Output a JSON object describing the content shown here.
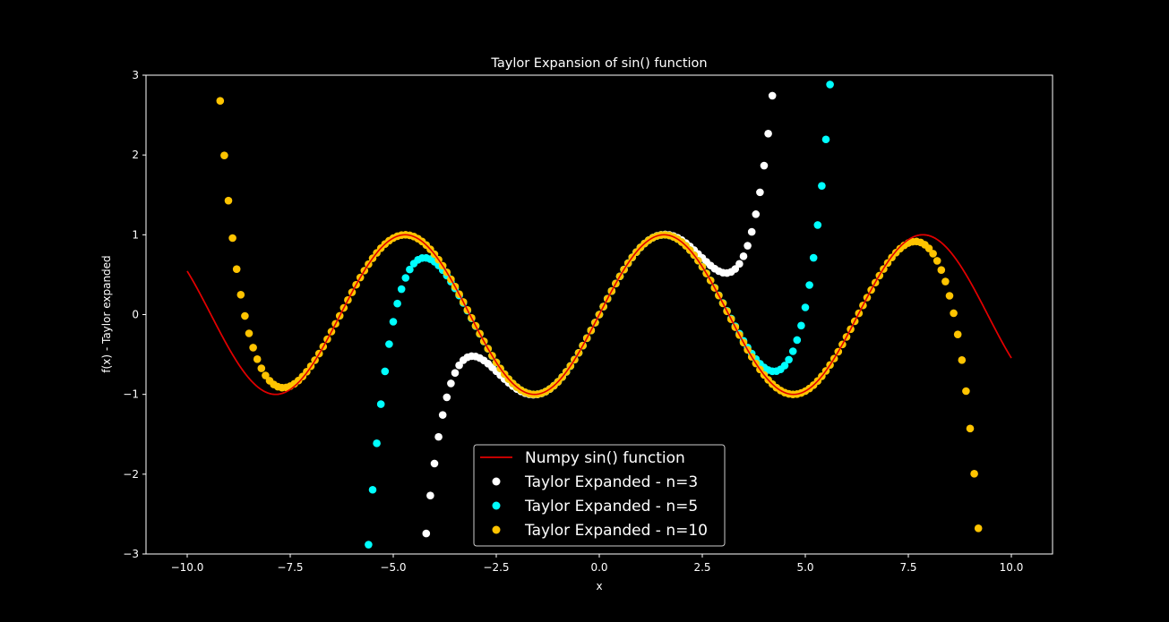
{
  "chart_data": {
    "type": "scatter",
    "title": "Taylor Expansion of sin() function",
    "xlabel": "x",
    "ylabel": "f(x) - Taylor expanded",
    "xlim": [
      -11,
      11
    ],
    "ylim": [
      -3,
      3
    ],
    "x_ticks": [
      -10,
      -7.5,
      -5,
      -2.5,
      0,
      2.5,
      5,
      7.5,
      10
    ],
    "x_tick_labels": [
      "−10.0",
      "−7.5",
      "−5.0",
      "−2.5",
      "0.0",
      "2.5",
      "5.0",
      "7.5",
      "10.0"
    ],
    "y_ticks": [
      -3,
      -2,
      -1,
      0,
      1,
      2,
      3
    ],
    "y_tick_labels": [
      "−3",
      "−2",
      "−1",
      "0",
      "1",
      "2",
      "3"
    ],
    "grid": false,
    "legend_position": "bottom-center",
    "background": "#000000",
    "x_range": [
      -10,
      10
    ],
    "n_points": 201,
    "series": [
      {
        "name": "Numpy sin() function",
        "kind": "line",
        "function": "sin",
        "color": "#e00000"
      },
      {
        "name": "Taylor Expanded - n=3",
        "kind": "scatter",
        "terms": 3,
        "color": "#ffffff"
      },
      {
        "name": "Taylor Expanded - n=5",
        "kind": "scatter",
        "terms": 5,
        "color": "#00ffff"
      },
      {
        "name": "Taylor Expanded - n=10",
        "kind": "scatter",
        "terms": 10,
        "color": "#ffc400"
      }
    ]
  }
}
